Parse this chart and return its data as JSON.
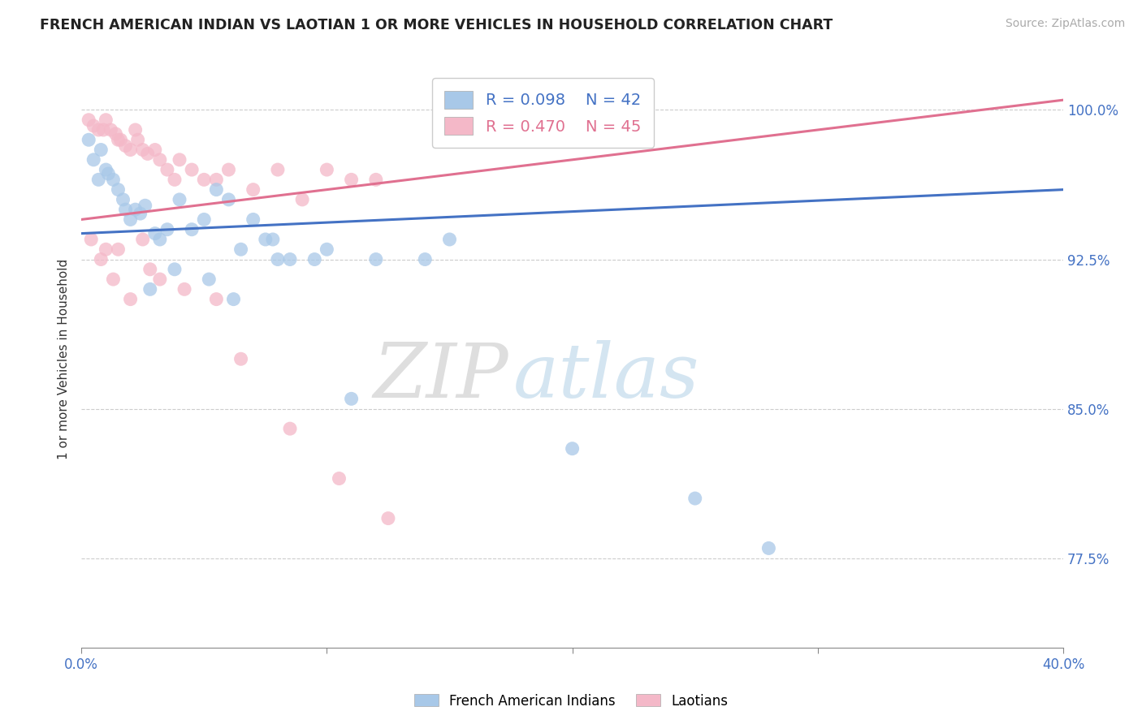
{
  "title": "FRENCH AMERICAN INDIAN VS LAOTIAN 1 OR MORE VEHICLES IN HOUSEHOLD CORRELATION CHART",
  "source": "Source: ZipAtlas.com",
  "ylabel": "1 or more Vehicles in Household",
  "xlim": [
    0.0,
    40.0
  ],
  "ylim": [
    73.0,
    102.0
  ],
  "yticks": [
    77.5,
    85.0,
    92.5,
    100.0
  ],
  "xticks": [
    0.0,
    10.0,
    20.0,
    30.0,
    40.0
  ],
  "ytick_labels": [
    "77.5%",
    "85.0%",
    "92.5%",
    "100.0%"
  ],
  "blue_r": 0.098,
  "blue_n": 42,
  "pink_r": 0.47,
  "pink_n": 45,
  "blue_color": "#a8c8e8",
  "pink_color": "#f4b8c8",
  "blue_line_color": "#4472c4",
  "pink_line_color": "#e07090",
  "legend_blue_label": "French American Indians",
  "legend_pink_label": "Laotians",
  "blue_line_x0": 0.0,
  "blue_line_y0": 93.8,
  "blue_line_x1": 40.0,
  "blue_line_y1": 96.0,
  "pink_line_x0": 0.0,
  "pink_line_y0": 94.5,
  "pink_line_x1": 40.0,
  "pink_line_y1": 100.5,
  "blue_x": [
    0.3,
    0.5,
    0.7,
    0.8,
    1.0,
    1.1,
    1.3,
    1.5,
    1.7,
    1.8,
    2.0,
    2.2,
    2.4,
    2.6,
    3.0,
    3.2,
    3.5,
    4.0,
    4.5,
    5.0,
    5.5,
    6.0,
    6.5,
    7.0,
    7.5,
    8.0,
    8.5,
    10.0,
    12.0,
    14.0,
    15.0,
    17.0,
    2.8,
    3.8,
    5.2,
    6.2,
    7.8,
    9.5,
    11.0,
    20.0,
    25.0,
    28.0
  ],
  "blue_y": [
    98.5,
    97.5,
    96.5,
    98.0,
    97.0,
    96.8,
    96.5,
    96.0,
    95.5,
    95.0,
    94.5,
    95.0,
    94.8,
    95.2,
    93.8,
    93.5,
    94.0,
    95.5,
    94.0,
    94.5,
    96.0,
    95.5,
    93.0,
    94.5,
    93.5,
    92.5,
    92.5,
    93.0,
    92.5,
    92.5,
    93.5,
    100.5,
    91.0,
    92.0,
    91.5,
    90.5,
    93.5,
    92.5,
    85.5,
    83.0,
    80.5,
    78.0
  ],
  "pink_x": [
    0.3,
    0.5,
    0.7,
    0.9,
    1.0,
    1.2,
    1.4,
    1.5,
    1.6,
    1.8,
    2.0,
    2.2,
    2.3,
    2.5,
    2.7,
    3.0,
    3.2,
    3.5,
    3.8,
    4.0,
    4.5,
    5.0,
    5.5,
    6.0,
    7.0,
    8.0,
    9.0,
    10.0,
    11.0,
    12.0,
    0.8,
    1.3,
    2.0,
    2.8,
    4.2,
    0.4,
    1.0,
    1.5,
    2.5,
    3.2,
    5.5,
    6.5,
    8.5,
    10.5,
    12.5
  ],
  "pink_y": [
    99.5,
    99.2,
    99.0,
    99.0,
    99.5,
    99.0,
    98.8,
    98.5,
    98.5,
    98.2,
    98.0,
    99.0,
    98.5,
    98.0,
    97.8,
    98.0,
    97.5,
    97.0,
    96.5,
    97.5,
    97.0,
    96.5,
    96.5,
    97.0,
    96.0,
    97.0,
    95.5,
    97.0,
    96.5,
    96.5,
    92.5,
    91.5,
    90.5,
    92.0,
    91.0,
    93.5,
    93.0,
    93.0,
    93.5,
    91.5,
    90.5,
    87.5,
    84.0,
    81.5,
    79.5
  ],
  "watermark_zip": "ZIP",
  "watermark_atlas": "atlas",
  "background_color": "#ffffff",
  "grid_color": "#cccccc"
}
